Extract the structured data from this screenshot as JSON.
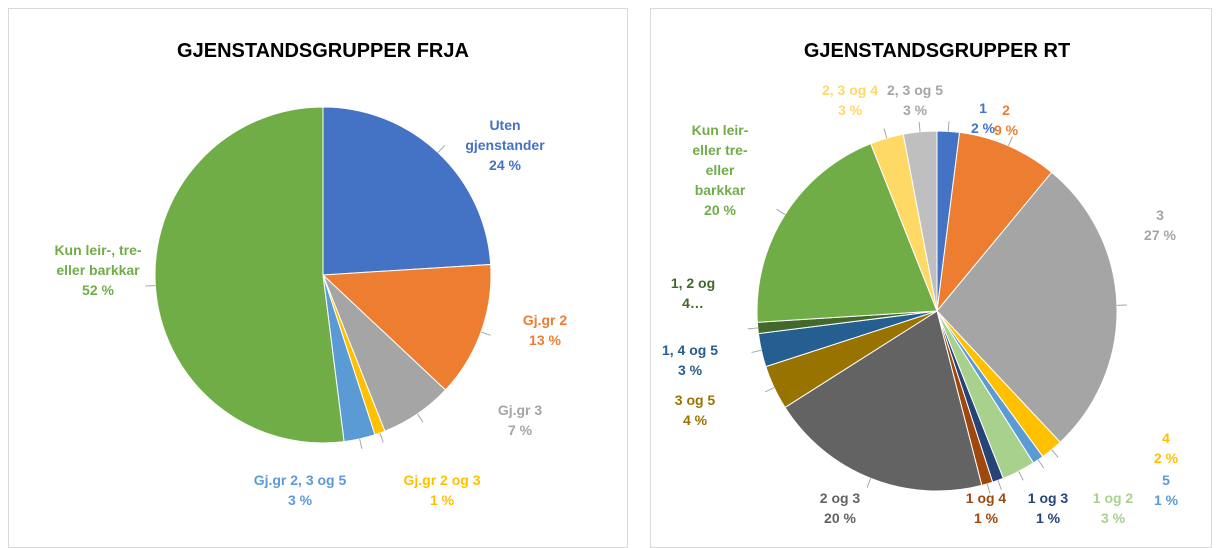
{
  "chart_data": [
    {
      "type": "pie",
      "title": "GJENSTANDSGRUPPER FRJA",
      "categories": [
        "Uten gjenstander",
        "Gj.gr 2",
        "Gj.gr 3",
        "Gj.gr 2 og 3",
        "Gj.gr 2, 3 og 5",
        "Kun leir-, tre- eller barkkar"
      ],
      "values": [
        24,
        13,
        7,
        1,
        3,
        52
      ],
      "value_labels": [
        "24 %",
        "13 %",
        "7 %",
        "1 %",
        "3 %",
        "52 %"
      ],
      "colors": [
        "#4472c4",
        "#ed7d31",
        "#a5a5a5",
        "#ffc000",
        "#5b9bd5",
        "#70ad47"
      ]
    },
    {
      "type": "pie",
      "title": "GJENSTANDSGRUPPER RT",
      "categories": [
        "1",
        "2",
        "3",
        "4",
        "5",
        "1 og 2",
        "1 og 3",
        "1 og 4",
        "2 og 3",
        "3 og 5",
        "1, 4 og 5",
        "1, 2 og 4…",
        "Kun leir- eller tre- eller barkkar",
        "2, 3 og 4",
        "2, 3 og 5"
      ],
      "values": [
        2,
        9,
        27,
        2,
        1,
        3,
        1,
        1,
        20,
        4,
        3,
        1,
        20,
        3,
        3
      ],
      "value_labels": [
        "2 %",
        "9 %",
        "27 %",
        "2 %",
        "1 %",
        "3 %",
        "1 %",
        "1 %",
        "20 %",
        "4 %",
        "3 %",
        "",
        "20 %",
        "3 %",
        "3 %"
      ],
      "colors": [
        "#4472c4",
        "#ed7d31",
        "#a5a5a5",
        "#ffc000",
        "#5b9bd5",
        "#a9d18e",
        "#264478",
        "#9e480e",
        "#636363",
        "#997300",
        "#255e91",
        "#43682b",
        "#70ad47",
        "#ffd966",
        "#bfbfbf"
      ]
    }
  ]
}
